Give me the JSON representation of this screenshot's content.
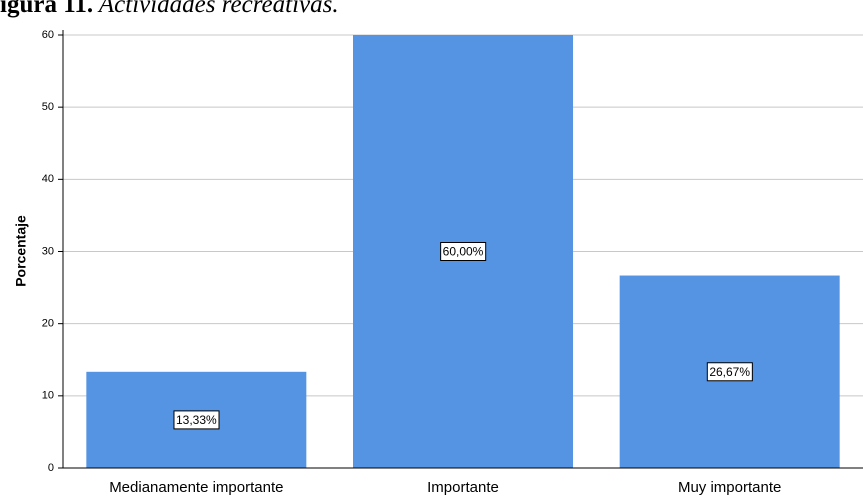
{
  "caption": {
    "label": "igura 11.",
    "text": " Actividades recreativas."
  },
  "chart_data": {
    "type": "bar",
    "categories": [
      "Medianamente importante",
      "Importante",
      "Muy importante"
    ],
    "values": [
      13.33,
      60.0,
      26.67
    ],
    "data_labels": [
      "13,33%",
      "60,00%",
      "26,67%"
    ],
    "xlabel": "",
    "ylabel": "Porcentaje",
    "ylim": [
      0,
      60
    ],
    "yticks": [
      0,
      10,
      20,
      30,
      40,
      50,
      60
    ],
    "grid": true,
    "colors": {
      "bar": "#5594e3",
      "grid": "#c8c8c8",
      "axis": "#000000"
    }
  }
}
